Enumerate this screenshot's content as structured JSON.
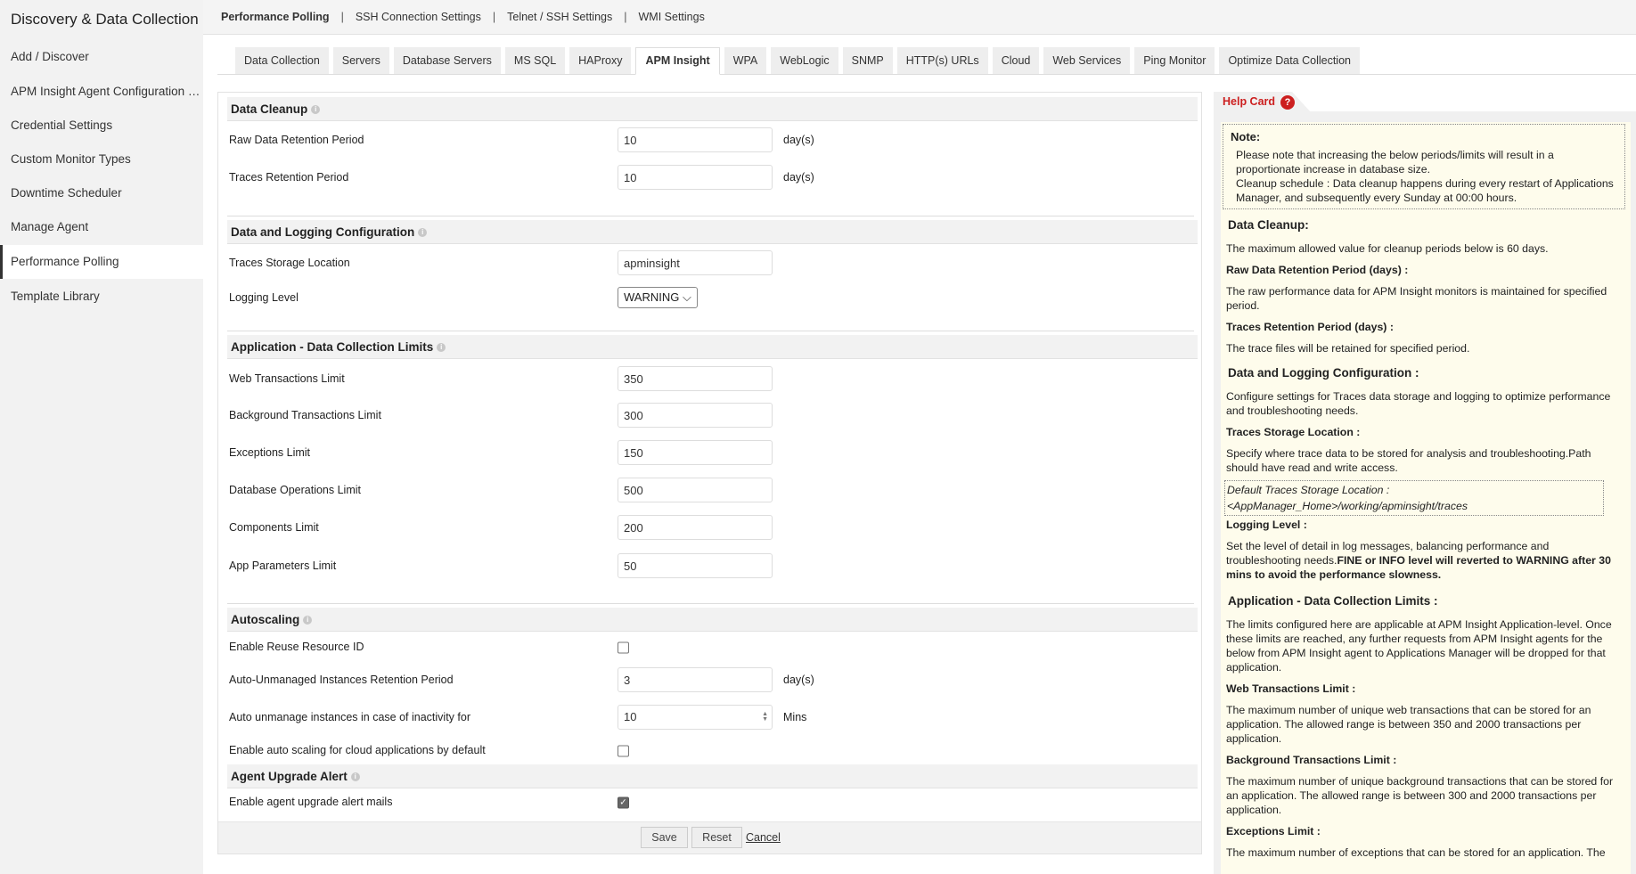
{
  "sidebar": {
    "title": "Discovery & Data Collection",
    "items": [
      {
        "label": "Add / Discover"
      },
      {
        "label": "APM Insight Agent Configuration Profiles"
      },
      {
        "label": "Credential Settings"
      },
      {
        "label": "Custom Monitor Types"
      },
      {
        "label": "Downtime Scheduler"
      },
      {
        "label": "Manage Agent"
      },
      {
        "label": "Performance Polling",
        "active": true
      },
      {
        "label": "Template Library"
      }
    ]
  },
  "topnav": {
    "items": [
      {
        "label": "Performance Polling",
        "active": true
      },
      {
        "label": "SSH Connection Settings"
      },
      {
        "label": "Telnet / SSH Settings"
      },
      {
        "label": "WMI Settings"
      }
    ],
    "separator": "|"
  },
  "tabs": [
    {
      "label": "Data Collection"
    },
    {
      "label": "Servers"
    },
    {
      "label": "Database Servers"
    },
    {
      "label": "MS SQL"
    },
    {
      "label": "HAProxy"
    },
    {
      "label": "APM Insight",
      "active": true
    },
    {
      "label": "WPA"
    },
    {
      "label": "WebLogic"
    },
    {
      "label": "SNMP"
    },
    {
      "label": "HTTP(s) URLs"
    },
    {
      "label": "Cloud"
    },
    {
      "label": "Web Services"
    },
    {
      "label": "Ping Monitor"
    },
    {
      "label": "Optimize Data Collection"
    }
  ],
  "form": {
    "sections": {
      "cleanup": "Data Cleanup",
      "logging": "Data and Logging Configuration",
      "limits": "Application - Data Collection Limits",
      "autoscaling": "Autoscaling",
      "upgrade": "Agent Upgrade Alert"
    },
    "info_glyph": "i",
    "raw_retention": {
      "label": "Raw Data Retention Period",
      "value": "10",
      "unit": "day(s)"
    },
    "traces_retention": {
      "label": "Traces Retention Period",
      "value": "10",
      "unit": "day(s)"
    },
    "traces_location": {
      "label": "Traces Storage Location",
      "value": "apminsight"
    },
    "logging_level": {
      "label": "Logging Level",
      "value": "WARNING"
    },
    "web_tx": {
      "label": "Web Transactions Limit",
      "value": "350"
    },
    "bg_tx": {
      "label": "Background Transactions Limit",
      "value": "300"
    },
    "exceptions": {
      "label": "Exceptions Limit",
      "value": "150"
    },
    "db_ops": {
      "label": "Database Operations Limit",
      "value": "500"
    },
    "components": {
      "label": "Components Limit",
      "value": "200"
    },
    "app_params": {
      "label": "App Parameters Limit",
      "value": "50"
    },
    "reuse_id": {
      "label": "Enable Reuse Resource ID",
      "checked": false
    },
    "unmanaged_retention": {
      "label": "Auto-Unmanaged Instances Retention Period",
      "value": "3",
      "unit": "day(s)"
    },
    "inactivity": {
      "label": "Auto unmanage instances in case of inactivity for",
      "value": "10",
      "unit": "Mins"
    },
    "cloud_autoscale": {
      "label": "Enable auto scaling for cloud applications by default",
      "checked": false
    },
    "upgrade_mails": {
      "label": "Enable agent upgrade alert mails",
      "checked": true
    },
    "buttons": {
      "save": "Save",
      "reset": "Reset",
      "cancel": "Cancel"
    }
  },
  "help": {
    "title": "Help Card",
    "icon": "?",
    "note_title": "Note:",
    "note_1": "Please note that increasing the below periods/limits will result in a proportionate increase in database size.",
    "note_2": "Cleanup schedule : Data cleanup happens during every restart of Applications Manager, and subsequently every Sunday at 00:00 hours.",
    "cleanup_h": "Data Cleanup:",
    "cleanup_p": "The maximum allowed value for cleanup periods below is 60 days.",
    "raw_h": "Raw Data Retention Period (days) :",
    "raw_p": "The raw performance data for APM Insight monitors is maintained for specified period.",
    "traces_h": "Traces Retention Period (days) :",
    "traces_p": "The trace files will be retained for specified period.",
    "logging_h": "Data and Logging Configuration :",
    "logging_p": "Configure settings for Traces data storage and logging to optimize performance and troubleshooting needs.",
    "loc_h": "Traces Storage Location :",
    "loc_p": "Specify where trace data to be stored for analysis and troubleshooting.Path should have read and write access.",
    "loc_default_1": "Default Traces Storage Location :",
    "loc_default_2": "<AppManager_Home>/working/apminsight/traces",
    "level_h": "Logging Level :",
    "level_p": "Set the level of detail in log messages, balancing performance and troubleshooting needs.",
    "level_bold": "FINE or INFO level will reverted to WARNING after 30 mins to avoid the performance slowness.",
    "limits_h": "Application - Data Collection Limits :",
    "limits_p": "The limits configured here are applicable at APM Insight Application-level. Once these limits are reached, any further requests from APM Insight agents for the below from APM Insight agent to Applications Manager will be dropped for that application.",
    "web_h": "Web Transactions Limit :",
    "web_p": "The maximum number of unique web transactions that can be stored for an application. The allowed range is between 350 and 2000 transactions per application.",
    "bg_h": "Background Transactions Limit :",
    "bg_p": "The maximum number of unique background transactions that can be stored for an application. The allowed range is between 300 and 2000 transactions per application.",
    "exc_h": "Exceptions Limit :",
    "exc_p": "The maximum number of exceptions that can be stored for an application. The"
  }
}
